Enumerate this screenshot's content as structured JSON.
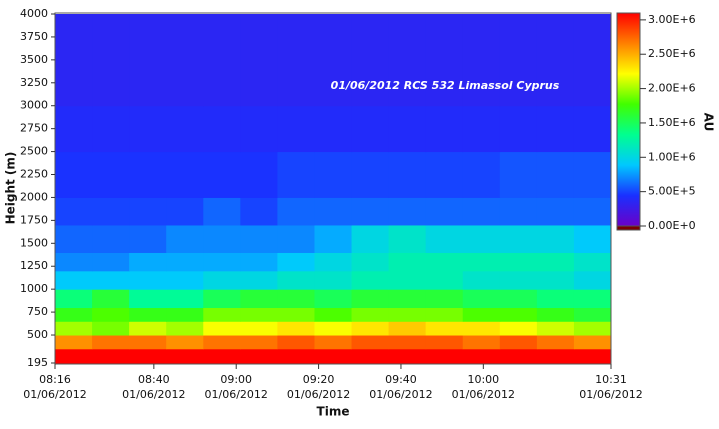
{
  "chart_data": {
    "type": "heatmap",
    "annotation": "01/06/2012 RCS 532 Limassol Cyprus",
    "xlabel": "Time",
    "ylabel": "Height (m)",
    "colorbar_label": "AU",
    "xlim": [
      496,
      631
    ],
    "xticks": [
      {
        "value": 496,
        "label": "08:16\n01/06/2012"
      },
      {
        "value": 520,
        "label": "08:40\n01/06/2012"
      },
      {
        "value": 540,
        "label": "09:00\n01/06/2012"
      },
      {
        "value": 560,
        "label": "09:20\n01/06/2012"
      },
      {
        "value": 580,
        "label": "09:40\n01/06/2012"
      },
      {
        "value": 600,
        "label": "10:00\n01/06/2012"
      },
      {
        "value": 631,
        "label": "10:31\n01/06/2012"
      }
    ],
    "ylim": [
      195,
      4000
    ],
    "yticks": [
      195,
      500,
      750,
      1000,
      1250,
      1500,
      1750,
      2000,
      2250,
      2500,
      2750,
      3000,
      3250,
      3500,
      3750,
      4000
    ],
    "clim": [
      0,
      3100000
    ],
    "cticks": [
      {
        "value": 0,
        "label": "0.00E+0"
      },
      {
        "value": 500000,
        "label": "5.00E+5"
      },
      {
        "value": 1000000,
        "label": "1.00E+6"
      },
      {
        "value": 1500000,
        "label": "1.50E+6"
      },
      {
        "value": 2000000,
        "label": "2.00E+6"
      },
      {
        "value": 2500000,
        "label": "2.50E+6"
      },
      {
        "value": 3000000,
        "label": "3.00E+6"
      }
    ],
    "colormap": [
      "#6a00c8",
      "#1a30ff",
      "#00c8ff",
      "#00ff90",
      "#40ff00",
      "#ffff00",
      "#ff8000",
      "#ff0000"
    ],
    "under_color": "#7a0000",
    "xbins": [
      496,
      505,
      514,
      523,
      532,
      541,
      550,
      559,
      568,
      577,
      586,
      595,
      604,
      613,
      622,
      631
    ],
    "ybins": [
      195,
      350,
      500,
      650,
      800,
      1000,
      1200,
      1400,
      1700,
      2000,
      2500,
      3000,
      4000
    ],
    "z": [
      [
        3300000.0,
        3300000.0,
        3300000.0,
        3300000.0,
        3300000.0,
        3300000.0,
        3300000.0,
        3300000.0,
        3300000.0,
        3300000.0,
        3300000.0,
        3300000.0,
        3300000.0,
        3300000.0,
        3300000.0
      ],
      [
        2600000.0,
        2700000.0,
        2700000.0,
        2600000.0,
        2700000.0,
        2700000.0,
        2800000.0,
        2700000.0,
        2800000.0,
        2800000.0,
        2800000.0,
        2700000.0,
        2800000.0,
        2700000.0,
        2600000.0
      ],
      [
        2000000.0,
        1900000.0,
        2100000.0,
        2000000.0,
        2200000.0,
        2200000.0,
        2300000.0,
        2200000.0,
        2300000.0,
        2400000.0,
        2300000.0,
        2300000.0,
        2200000.0,
        2100000.0,
        2000000.0
      ],
      [
        1700000.0,
        1800000.0,
        1700000.0,
        1700000.0,
        1900000.0,
        1900000.0,
        1900000.0,
        1800000.0,
        1900000.0,
        1900000.0,
        1900000.0,
        1800000.0,
        1800000.0,
        1700000.0,
        1600000.0
      ],
      [
        1400000.0,
        1600000.0,
        1300000.0,
        1300000.0,
        1500000.0,
        1600000.0,
        1600000.0,
        1500000.0,
        1600000.0,
        1600000.0,
        1600000.0,
        1500000.0,
        1500000.0,
        1400000.0,
        1400000.0
      ],
      [
        900000.0,
        900000.0,
        900000.0,
        900000.0,
        1000000.0,
        1000000.0,
        1100000.0,
        1100000.0,
        1200000.0,
        1200000.0,
        1200000.0,
        1100000.0,
        1100000.0,
        1100000.0,
        1000000.0
      ],
      [
        700000.0,
        700000.0,
        800000.0,
        800000.0,
        800000.0,
        800000.0,
        900000.0,
        1000000.0,
        1100000.0,
        1200000.0,
        1200000.0,
        1200000.0,
        1200000.0,
        1200000.0,
        1100000.0
      ],
      [
        600000.0,
        600000.0,
        600000.0,
        700000.0,
        700000.0,
        700000.0,
        700000.0,
        800000.0,
        1000000.0,
        1100000.0,
        1000000.0,
        1000000.0,
        1000000.0,
        1000000.0,
        900000.0
      ],
      [
        500000.0,
        500000.0,
        500000.0,
        500000.0,
        600000.0,
        500000.0,
        600000.0,
        600000.0,
        600000.0,
        600000.0,
        600000.0,
        600000.0,
        600000.0,
        600000.0,
        600000.0
      ],
      [
        450000.0,
        450000.0,
        450000.0,
        450000.0,
        450000.0,
        450000.0,
        500000.0,
        500000.0,
        500000.0,
        500000.0,
        500000.0,
        500000.0,
        550000.0,
        550000.0,
        550000.0
      ],
      [
        400000.0,
        400000.0,
        400000.0,
        400000.0,
        400000.0,
        400000.0,
        400000.0,
        400000.0,
        400000.0,
        400000.0,
        400000.0,
        400000.0,
        400000.0,
        400000.0,
        400000.0
      ],
      [
        350000.0,
        350000.0,
        350000.0,
        350000.0,
        350000.0,
        350000.0,
        350000.0,
        350000.0,
        350000.0,
        350000.0,
        350000.0,
        350000.0,
        350000.0,
        350000.0,
        350000.0
      ]
    ]
  }
}
